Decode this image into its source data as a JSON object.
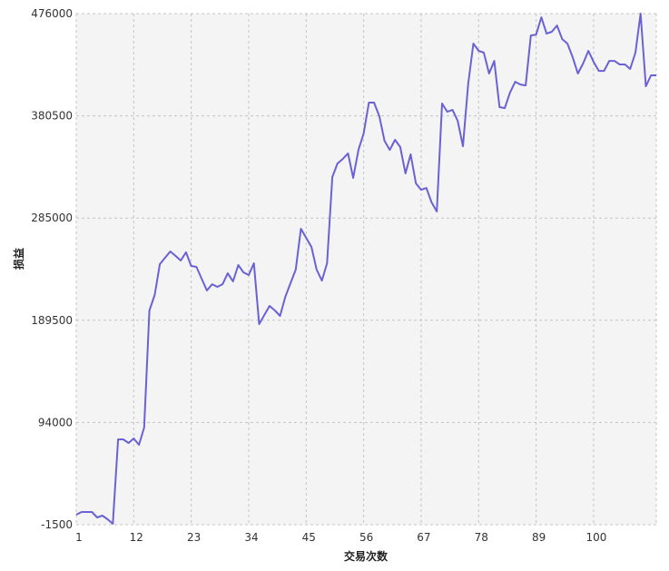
{
  "chart_data": {
    "type": "line",
    "title": "",
    "xlabel": "交易次数",
    "ylabel": "损益",
    "xlim": [
      1,
      112
    ],
    "ylim": [
      -1500,
      476000
    ],
    "xticks": [
      1,
      12,
      23,
      34,
      45,
      56,
      67,
      78,
      89,
      100
    ],
    "yticks": [
      -1500,
      94000,
      189500,
      285000,
      380500,
      476000
    ],
    "grid": true,
    "legend": "none",
    "colors": {
      "line": "#6a62d4",
      "plot_bg": "#f4f4f4",
      "grid": "#c4c4c4"
    },
    "series": [
      {
        "values": [
          7830,
          10370,
          10370,
          10370,
          5280,
          6980,
          3590,
          -650,
          78230,
          78230,
          74830,
          79080,
          73140,
          89260,
          198700,
          213100,
          241900,
          247900,
          253800,
          249600,
          245300,
          253000,
          240200,
          239400,
          228300,
          217300,
          223200,
          220700,
          223200,
          233400,
          225800,
          241100,
          234300,
          231700,
          242800,
          185900,
          194400,
          202900,
          198700,
          193600,
          211400,
          224100,
          236800,
          275000,
          266500,
          258000,
          236800,
          226600,
          242800,
          323300,
          336000,
          340200,
          345400,
          322500,
          348700,
          364000,
          392900,
          392900,
          380100,
          357200,
          348700,
          358100,
          351300,
          326700,
          344500,
          317400,
          311400,
          313100,
          299600,
          291100,
          392000,
          384300,
          386000,
          375900,
          352100,
          410600,
          448000,
          441200,
          439500,
          420000,
          431800,
          388600,
          387700,
          402100,
          412300,
          409800,
          408900,
          455600,
          456400,
          472500,
          457300,
          459000,
          464900,
          452200,
          448000,
          435200,
          420000,
          429400,
          441200,
          431000,
          422500,
          422500,
          431800,
          431800,
          428500,
          428500,
          424300,
          439500,
          476000,
          408100,
          418300,
          418300
        ]
      }
    ]
  }
}
